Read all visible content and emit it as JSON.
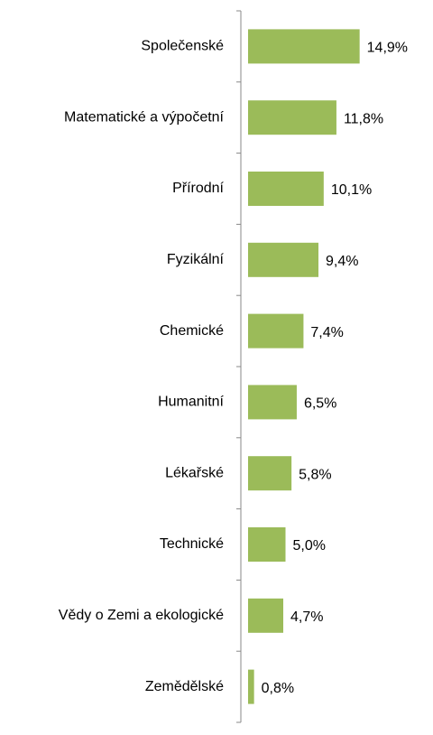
{
  "chart_data": {
    "type": "bar",
    "orientation": "horizontal",
    "categories": [
      "Společenské",
      "Matematické a výpočetní",
      "Přírodní",
      "Fyzikální",
      "Chemické",
      "Humanitní",
      "Lékařské",
      "Technické",
      "Vědy o Zemi a ekologické",
      "Zemědělské"
    ],
    "values": [
      14.9,
      11.8,
      10.1,
      9.4,
      7.4,
      6.5,
      5.8,
      5.0,
      4.7,
      0.8
    ],
    "value_labels": [
      "14,9%",
      "11,8%",
      "10,1%",
      "9,4%",
      "7,4%",
      "6,5%",
      "5,8%",
      "5,0%",
      "4,7%",
      "0,8%"
    ],
    "color": "#9bbb59",
    "xlim": [
      0,
      20
    ]
  }
}
